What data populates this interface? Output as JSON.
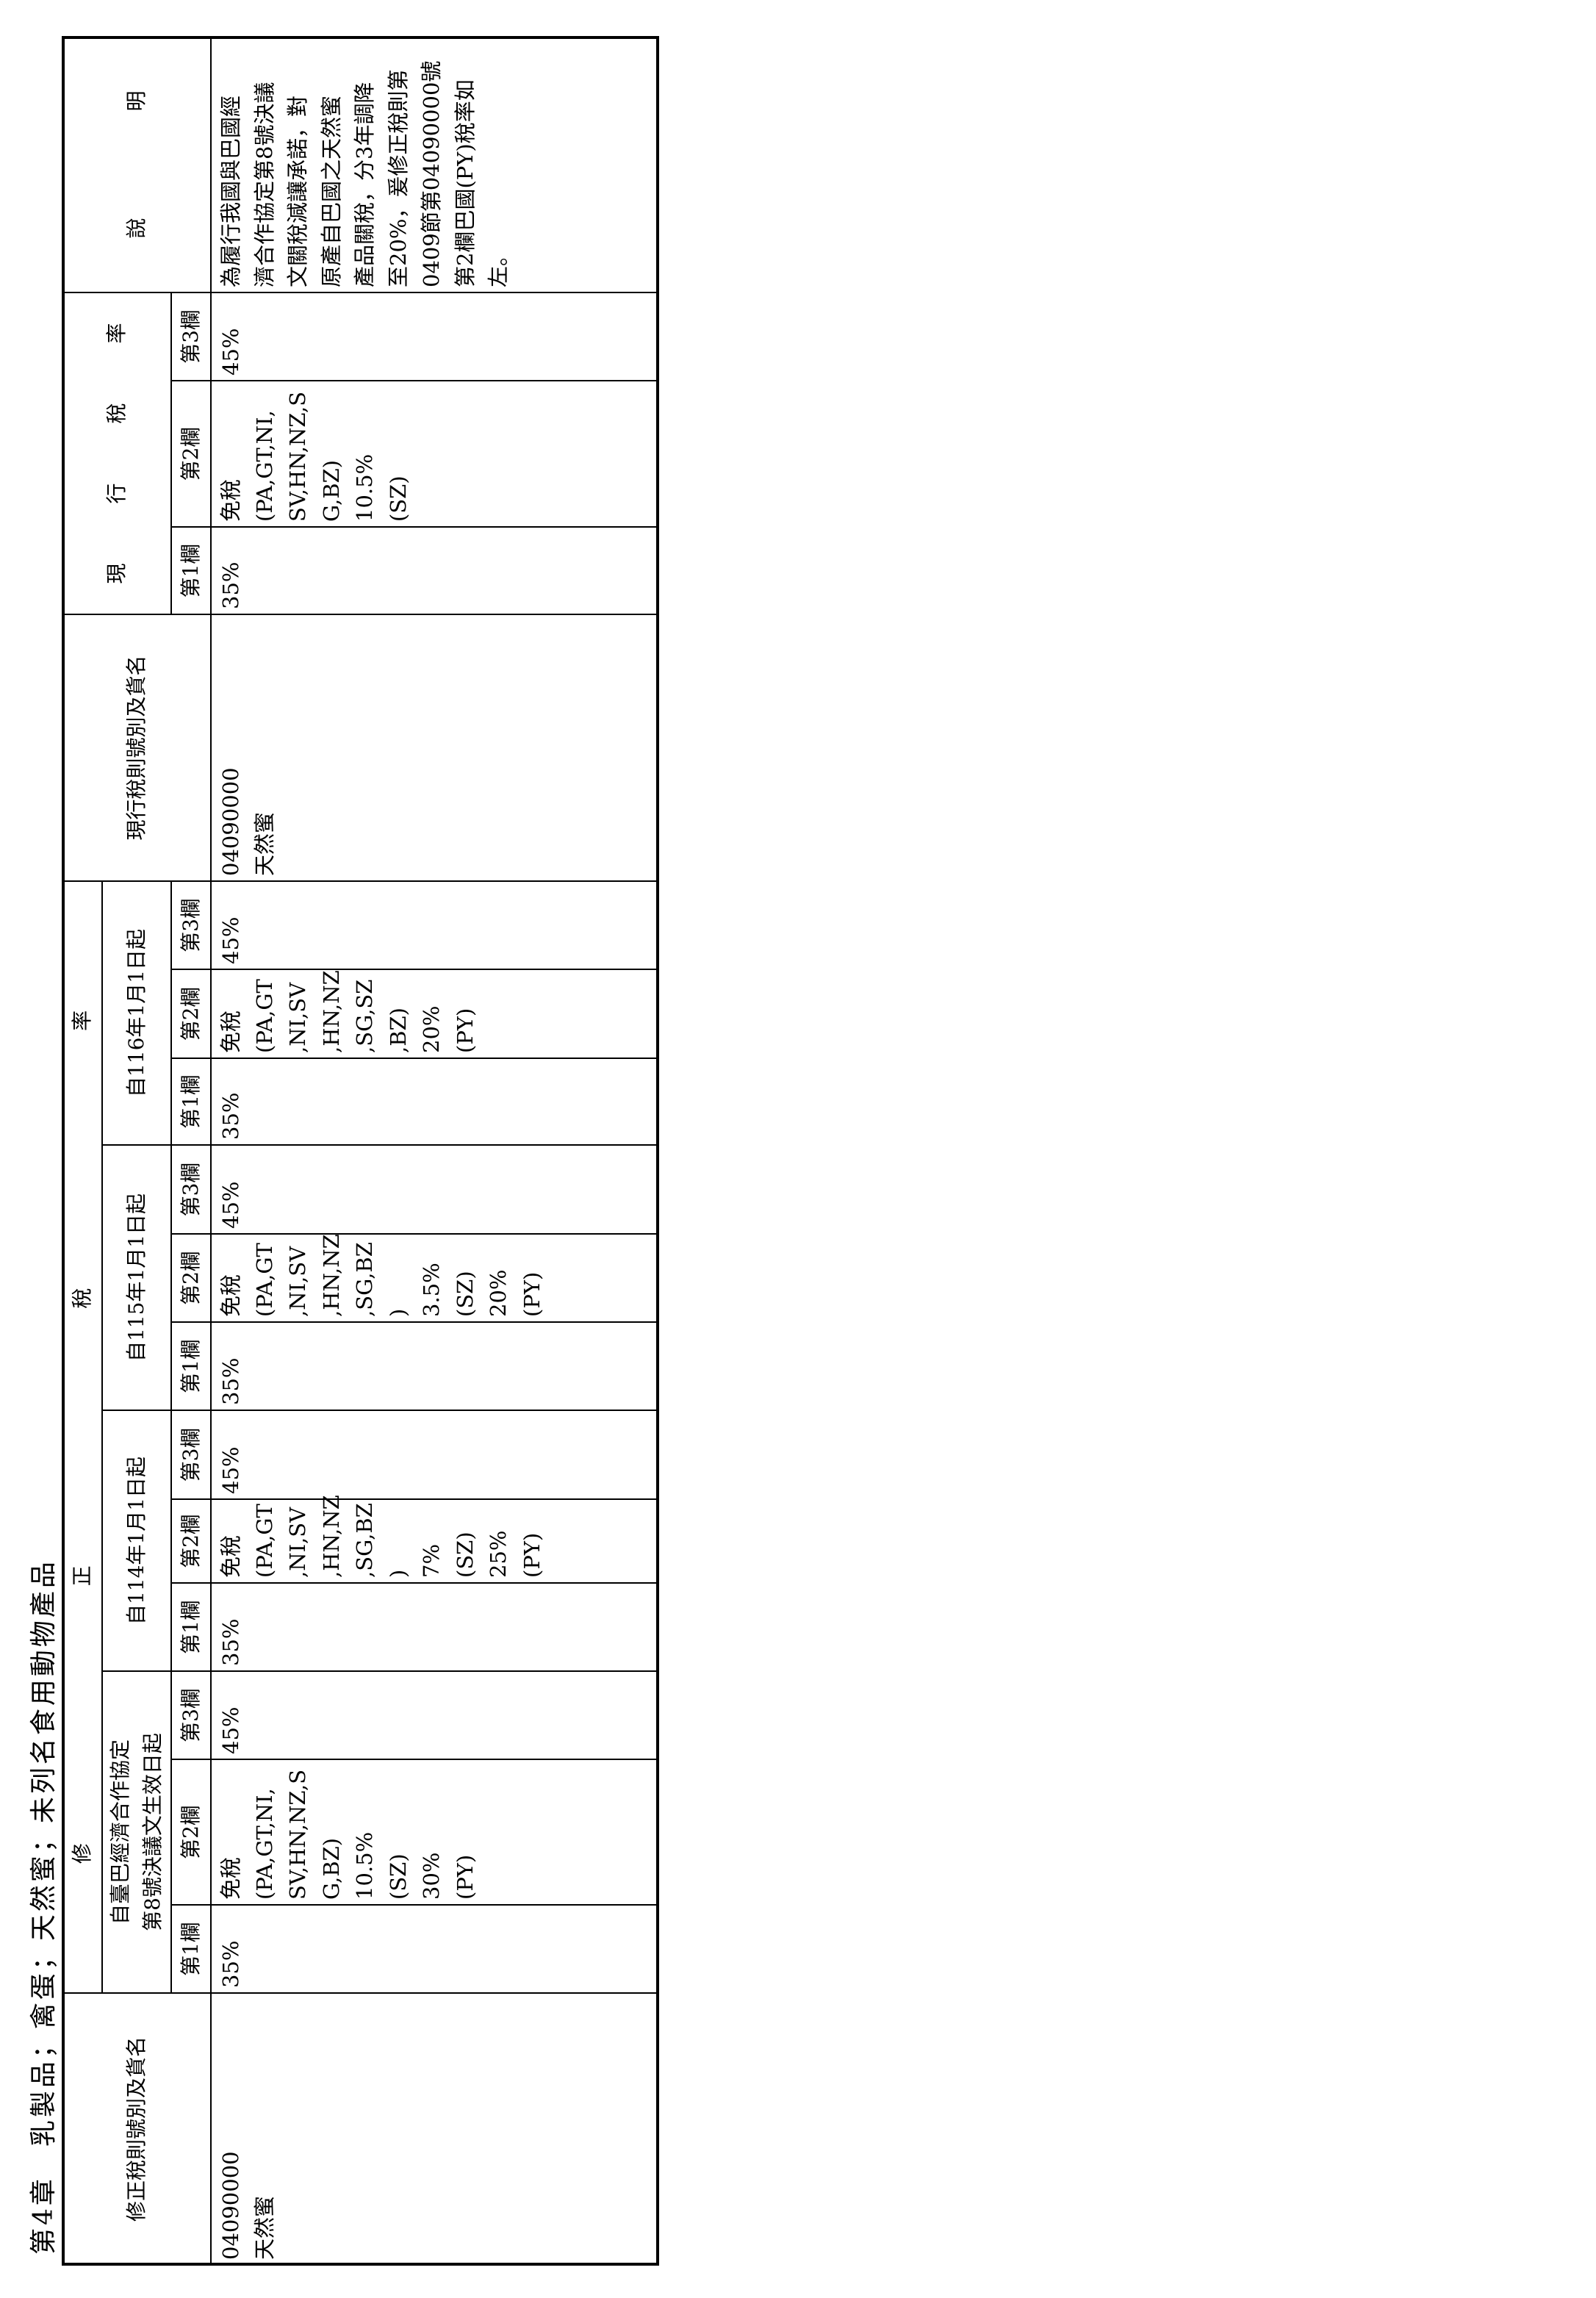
{
  "title": "第4章　乳製品；禽蛋；天然蜜；未列名食用動物產品",
  "headers": {
    "amended_code": "修正稅則號別及貨名",
    "amended_rate_chars": [
      "修",
      "正",
      "稅",
      "率"
    ],
    "groups": [
      [
        "自臺巴經濟合作協定",
        "第8號決議文生效日起"
      ],
      [
        "自114年1月1日起"
      ],
      [
        "自115年1月1日起"
      ],
      [
        "自116年1月1日起"
      ]
    ],
    "col1": "第1欄",
    "col2": "第2欄",
    "col3": "第3欄",
    "current_code": "現行稅則號別及貨名",
    "current_rate_chars": [
      "現",
      "行",
      "稅",
      "率"
    ],
    "explanation_chars": [
      "說",
      "明"
    ]
  },
  "row": {
    "amended_code": [
      "04090000",
      "天然蜜"
    ],
    "groups": [
      {
        "c1": [
          "35%"
        ],
        "c2": [
          "免稅",
          "(PA,GT,NI,",
          "SV,HN,NZ,S",
          "G,BZ)",
          "10.5%",
          "(SZ)",
          "30%",
          "(PY)"
        ],
        "c3": [
          "45%"
        ]
      },
      {
        "c1": [
          "35%"
        ],
        "c2": [
          "免稅",
          "(PA,GT",
          ",NI,SV",
          ",HN,NZ",
          ",SG,BZ",
          ")",
          "7%",
          "(SZ)",
          "25%",
          "(PY)"
        ],
        "c3": [
          "45%"
        ]
      },
      {
        "c1": [
          "35%"
        ],
        "c2": [
          "免稅",
          "(PA,GT",
          ",NI,SV",
          ",HN,NZ",
          ",SG,BZ",
          ")",
          "3.5%",
          "(SZ)",
          "20%",
          "(PY)"
        ],
        "c3": [
          "45%"
        ]
      },
      {
        "c1": [
          "35%"
        ],
        "c2": [
          "免稅",
          "(PA,GT",
          ",NI,SV",
          ",HN,NZ",
          ",SG,SZ",
          ",BZ)",
          "20%",
          "(PY)"
        ],
        "c3": [
          "45%"
        ]
      }
    ],
    "current_code": [
      "04090000",
      "天然蜜"
    ],
    "current": {
      "c1": [
        "35%"
      ],
      "c2": [
        "免稅",
        "(PA,GT,NI,",
        "SV,HN,NZ,S",
        "G,BZ)",
        "10.5%",
        "(SZ)"
      ],
      "c3": [
        "45%"
      ]
    },
    "explanation": [
      "為履行我國與巴國經",
      "濟合作協定第8號決議",
      "文關稅減讓承諾，對",
      "原產自巴國之天然蜜",
      "產品關稅，分3年調降",
      "至20%，爰修正稅則第",
      "0409節第04090000號",
      "第2欄巴國(PY)稅率如",
      "左。"
    ]
  }
}
